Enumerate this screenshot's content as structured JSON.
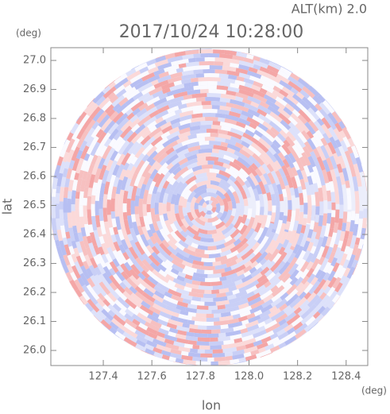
{
  "chart_data": {
    "type": "ppi",
    "title": "2017/10/24 10:28:00",
    "subtitle": "ALT(km) 2.0",
    "xlabel": "lon",
    "ylabel": "lat",
    "xunit": "(deg)",
    "yunit": "(deg)",
    "xlim": [
      127.184,
      128.489
    ],
    "ylim": [
      25.948,
      27.044
    ],
    "xticks": [
      127.4,
      127.6,
      127.8,
      {
        "value": 128.0,
        "label": "128.0"
      },
      128.2,
      128.4
    ],
    "yticks": [
      {
        "value": 26.0,
        "label": "26.0"
      },
      26.1,
      26.2,
      26.3,
      26.4,
      26.5,
      26.6,
      26.7,
      26.8,
      26.9,
      {
        "value": 27.0,
        "label": "27.0"
      }
    ]
  }
}
